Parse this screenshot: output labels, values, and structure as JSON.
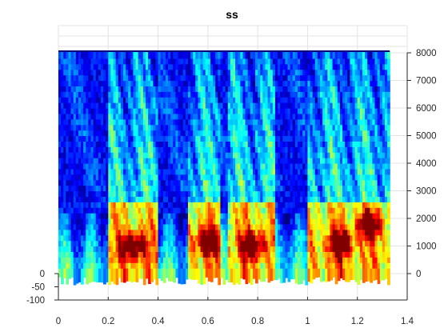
{
  "chart_data": {
    "type": "heatmap",
    "title": "ss",
    "xlabel": "",
    "ylabel": "",
    "colormap": "jet",
    "grid": true,
    "x_axis": {
      "lim": [
        0,
        1.4
      ],
      "ticks": [
        0,
        0.2,
        0.4,
        0.6,
        0.8,
        1,
        1.2,
        1.4
      ],
      "tick_labels": [
        "0",
        "0.2",
        "0.4",
        "0.6",
        "0.8",
        "1",
        "1.2",
        "1.4"
      ]
    },
    "y_axis_right": {
      "lim": [
        0,
        8000
      ],
      "ticks": [
        0,
        1000,
        2000,
        3000,
        4000,
        5000,
        6000,
        7000,
        8000
      ],
      "tick_labels": [
        "0",
        "1000",
        "2000",
        "3000",
        "4000",
        "5000",
        "6000",
        "7000",
        "8000"
      ]
    },
    "y_axis_left": {
      "lim": [
        -100,
        0
      ],
      "ticks": [
        -100,
        -50,
        0
      ],
      "tick_labels": [
        "-100",
        "-50",
        "0"
      ]
    },
    "surface": {
      "time_range": [
        0,
        1.33
      ],
      "freq_range": [
        0,
        8000
      ],
      "loud_regions": [
        {
          "t": [
            0.2,
            0.4
          ],
          "f": [
            300,
            8000
          ]
        },
        {
          "t": [
            0.52,
            0.65
          ],
          "f": [
            300,
            8000
          ]
        },
        {
          "t": [
            0.68,
            0.87
          ],
          "f": [
            300,
            8000
          ]
        },
        {
          "t": [
            1.0,
            1.33
          ],
          "f": [
            300,
            8000
          ]
        }
      ],
      "peak_regions": [
        {
          "t": 0.3,
          "f": 1000
        },
        {
          "t": 0.6,
          "f": 1200
        },
        {
          "t": 0.78,
          "f": 1050
        },
        {
          "t": 1.13,
          "f": 1100
        },
        {
          "t": 1.25,
          "f": 1800
        }
      ]
    }
  }
}
